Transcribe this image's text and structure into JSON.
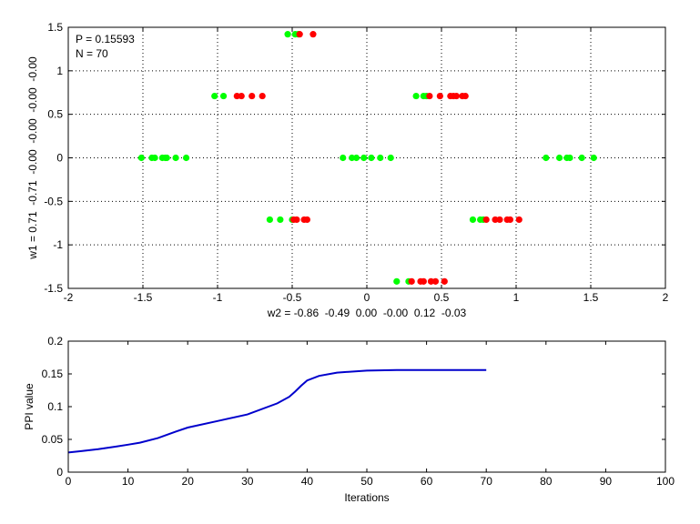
{
  "figure": {
    "background": "#ffffff",
    "green": "#00ff00",
    "red": "#ff0000",
    "line_color": "#0000cc"
  },
  "chart_data": [
    {
      "type": "scatter",
      "xlabel": "w2 = -0.86  -0.49  0.00  -0.00  0.12  -0.03",
      "ylabel": "w1 = 0.71  -0.71  -0.00  -0.00  -0.00  -0.00",
      "annotations": [
        "P = 0.15593",
        "N = 70"
      ],
      "xlim": [
        -2,
        2
      ],
      "ylim": [
        -1.5,
        1.5
      ],
      "xticks": [
        -2,
        -1.5,
        -1,
        -0.5,
        0,
        0.5,
        1,
        1.5,
        2
      ],
      "xtick_labels": [
        "-2",
        "-1.5",
        "-1",
        "-0.5",
        "0",
        "0.5",
        "1",
        "1.5",
        "2"
      ],
      "yticks": [
        -1.5,
        -1,
        -0.5,
        0,
        0.5,
        1,
        1.5
      ],
      "ytick_labels": [
        "-1.5",
        "-1",
        "-0.5",
        "0",
        "0.5",
        "1",
        "1.5"
      ],
      "grid": true,
      "series": [
        {
          "color": "green",
          "points": [
            [
              -0.53,
              1.42
            ],
            [
              -0.48,
              1.42
            ],
            [
              -0.46,
              1.42
            ],
            [
              -1.02,
              0.71
            ],
            [
              -0.96,
              0.71
            ],
            [
              0.33,
              0.71
            ],
            [
              0.38,
              0.71
            ],
            [
              0.4,
              0.71
            ],
            [
              -1.51,
              0
            ],
            [
              -1.44,
              0
            ],
            [
              -1.42,
              0
            ],
            [
              -1.37,
              0
            ],
            [
              -1.35,
              0
            ],
            [
              -1.34,
              0
            ],
            [
              -1.28,
              0
            ],
            [
              -1.21,
              0
            ],
            [
              -0.16,
              0
            ],
            [
              -0.1,
              0
            ],
            [
              -0.07,
              0
            ],
            [
              -0.02,
              0
            ],
            [
              0.03,
              0
            ],
            [
              0.09,
              0
            ],
            [
              0.16,
              0
            ],
            [
              1.2,
              0
            ],
            [
              1.29,
              0
            ],
            [
              1.34,
              0
            ],
            [
              1.36,
              0
            ],
            [
              1.44,
              0
            ],
            [
              1.52,
              0
            ],
            [
              -0.65,
              -0.71
            ],
            [
              -0.58,
              -0.71
            ],
            [
              -0.5,
              -0.71
            ],
            [
              0.71,
              -0.71
            ],
            [
              0.76,
              -0.71
            ],
            [
              0.78,
              -0.71
            ],
            [
              0.2,
              -1.42
            ],
            [
              0.28,
              -1.42
            ]
          ]
        },
        {
          "color": "red",
          "points": [
            [
              -0.45,
              1.42
            ],
            [
              -0.36,
              1.42
            ],
            [
              -0.87,
              0.71
            ],
            [
              -0.84,
              0.71
            ],
            [
              -0.77,
              0.71
            ],
            [
              -0.7,
              0.71
            ],
            [
              0.42,
              0.71
            ],
            [
              0.49,
              0.71
            ],
            [
              0.56,
              0.71
            ],
            [
              0.58,
              0.71
            ],
            [
              0.6,
              0.71
            ],
            [
              0.64,
              0.71
            ],
            [
              0.66,
              0.71
            ],
            [
              -0.49,
              -0.71
            ],
            [
              -0.47,
              -0.71
            ],
            [
              -0.42,
              -0.71
            ],
            [
              -0.4,
              -0.71
            ],
            [
              0.8,
              -0.71
            ],
            [
              0.86,
              -0.71
            ],
            [
              0.89,
              -0.71
            ],
            [
              0.94,
              -0.71
            ],
            [
              0.96,
              -0.71
            ],
            [
              1.02,
              -0.71
            ],
            [
              0.3,
              -1.42
            ],
            [
              0.36,
              -1.42
            ],
            [
              0.38,
              -1.42
            ],
            [
              0.43,
              -1.42
            ],
            [
              0.46,
              -1.42
            ],
            [
              0.52,
              -1.42
            ]
          ]
        }
      ]
    },
    {
      "type": "line",
      "xlabel": "Iterations",
      "ylabel": "PPI value",
      "xlim": [
        0,
        100
      ],
      "ylim": [
        0,
        0.2
      ],
      "xticks": [
        0,
        10,
        20,
        30,
        40,
        50,
        60,
        70,
        80,
        90,
        100
      ],
      "xtick_labels": [
        "0",
        "10",
        "20",
        "30",
        "40",
        "50",
        "60",
        "70",
        "80",
        "90",
        "100"
      ],
      "yticks": [
        0,
        0.05,
        0.1,
        0.15,
        0.2
      ],
      "ytick_labels": [
        "0",
        "0.05",
        "0.1",
        "0.15",
        "0.2"
      ],
      "grid": false,
      "series": [
        {
          "x": [
            0,
            2,
            5,
            8,
            10,
            12,
            15,
            18,
            20,
            25,
            30,
            35,
            37,
            38,
            39,
            40,
            42,
            45,
            50,
            55,
            60,
            65,
            70
          ],
          "y": [
            0.03,
            0.032,
            0.035,
            0.039,
            0.042,
            0.045,
            0.052,
            0.062,
            0.068,
            0.078,
            0.088,
            0.105,
            0.115,
            0.123,
            0.132,
            0.14,
            0.147,
            0.152,
            0.155,
            0.156,
            0.156,
            0.156,
            0.156
          ]
        }
      ]
    }
  ]
}
